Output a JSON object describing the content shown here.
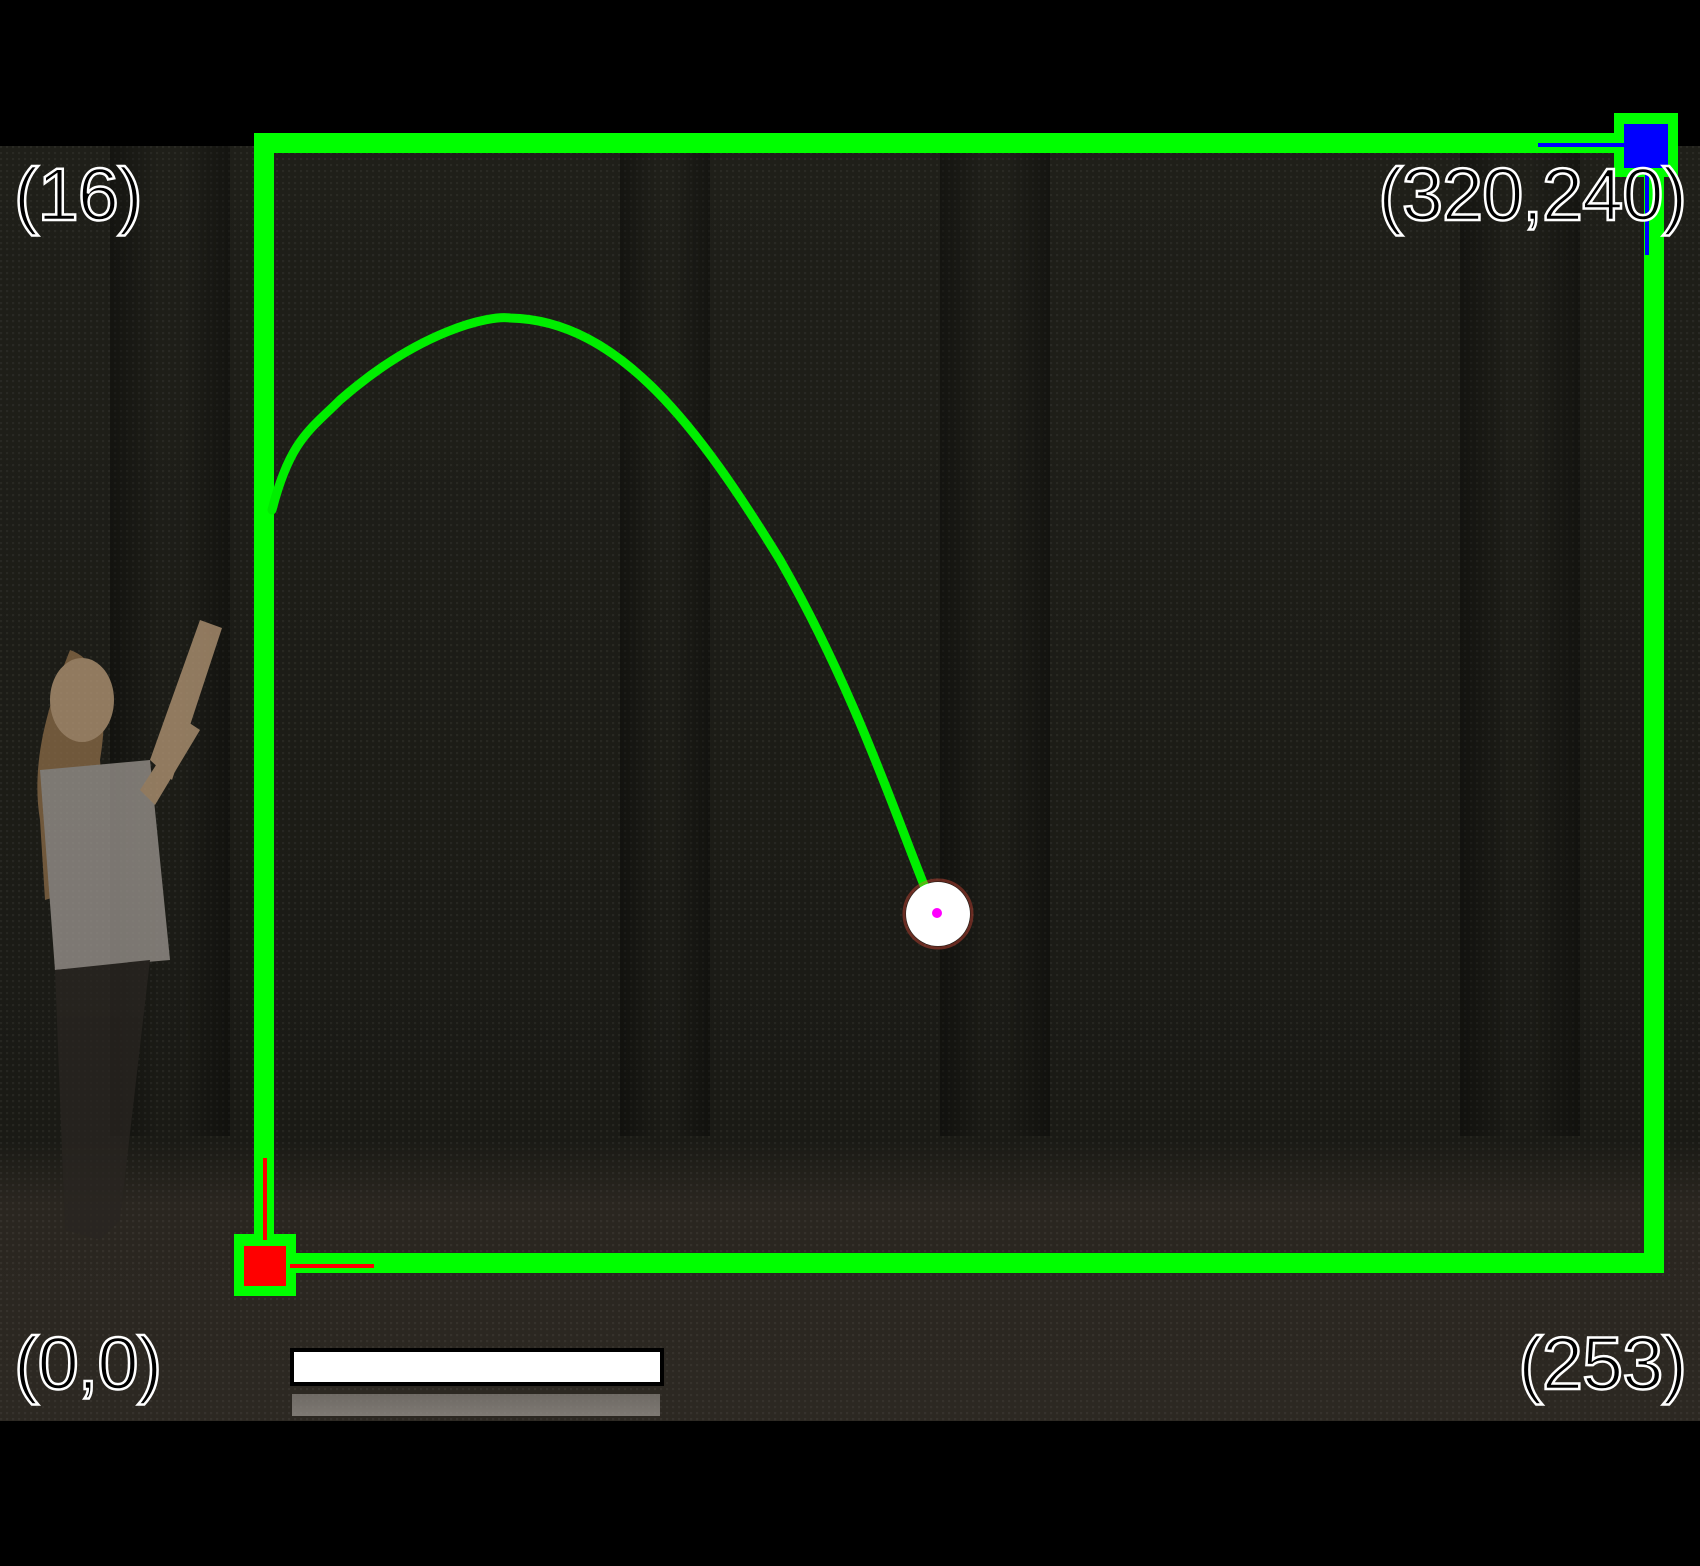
{
  "labels": {
    "top_left": "(16)",
    "top_right": "(320,240)",
    "bottom_left": "(0,0)",
    "bottom_right": "(253)"
  },
  "colors": {
    "tracking_box": "#00ff00",
    "trajectory": "#00ee00",
    "origin_marker": "#ff0000",
    "far_corner_marker": "#0000ff",
    "ball_center": "#ff00ff",
    "ball": "#ffffff"
  },
  "progress": {
    "fraction": 1.0
  },
  "icons": {
    "origin": "origin-marker-icon",
    "far_corner": "corner-marker-icon",
    "ball": "ball-icon"
  }
}
